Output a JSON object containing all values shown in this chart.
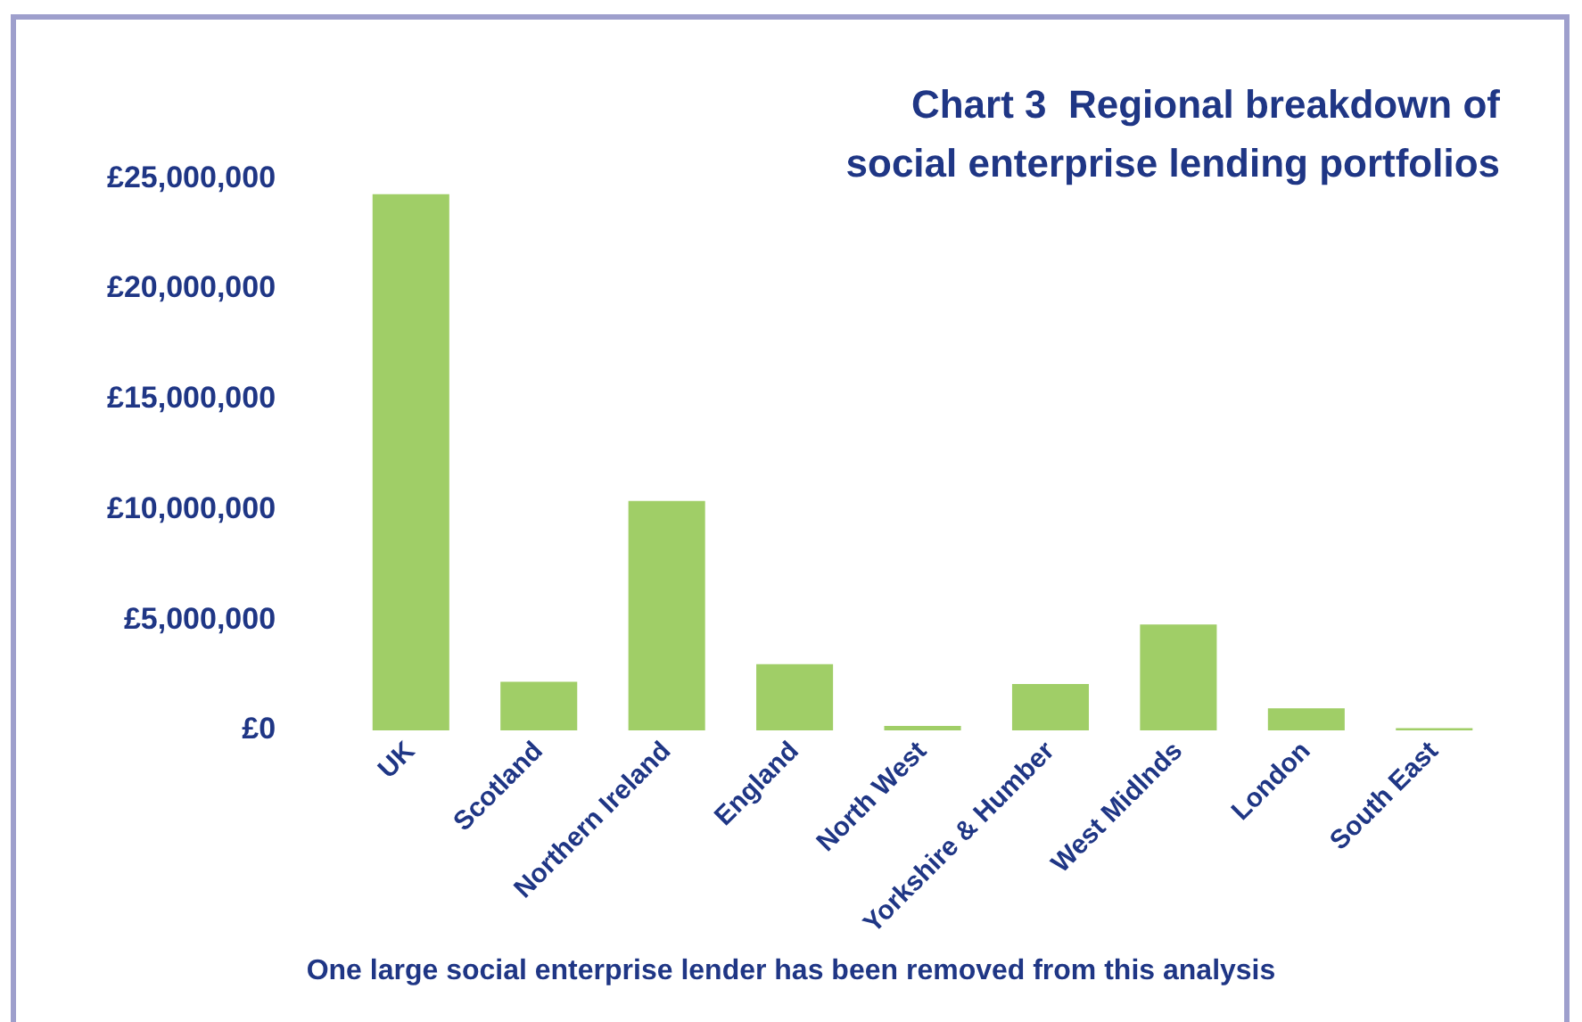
{
  "chart_data": {
    "type": "bar",
    "title": "Chart 3  Regional breakdown of\nsocial enterprise lending portfolios",
    "categories": [
      "UK",
      "Scotland",
      "Northern Ireland",
      "England",
      "North West",
      "Yorkshire & Humber",
      "West Midlnds",
      "London",
      "South East"
    ],
    "values": [
      24300000,
      2200000,
      10400000,
      3000000,
      200000,
      2100000,
      4800000,
      1000000,
      100000
    ],
    "color": "#a0ce67",
    "ylim": [
      0,
      25000000
    ],
    "yticks": [
      {
        "value": 0,
        "label": "£0"
      },
      {
        "value": 5000000,
        "label": "£5,000,000"
      },
      {
        "value": 10000000,
        "label": "£10,000,000"
      },
      {
        "value": 15000000,
        "label": "£15,000,000"
      },
      {
        "value": 20000000,
        "label": "£20,000,000"
      },
      {
        "value": 25000000,
        "label": "£25,000,000"
      }
    ],
    "grid": false,
    "legend": false,
    "annotations": [
      "One large social enterprise lender has been removed from this analysis"
    ]
  }
}
